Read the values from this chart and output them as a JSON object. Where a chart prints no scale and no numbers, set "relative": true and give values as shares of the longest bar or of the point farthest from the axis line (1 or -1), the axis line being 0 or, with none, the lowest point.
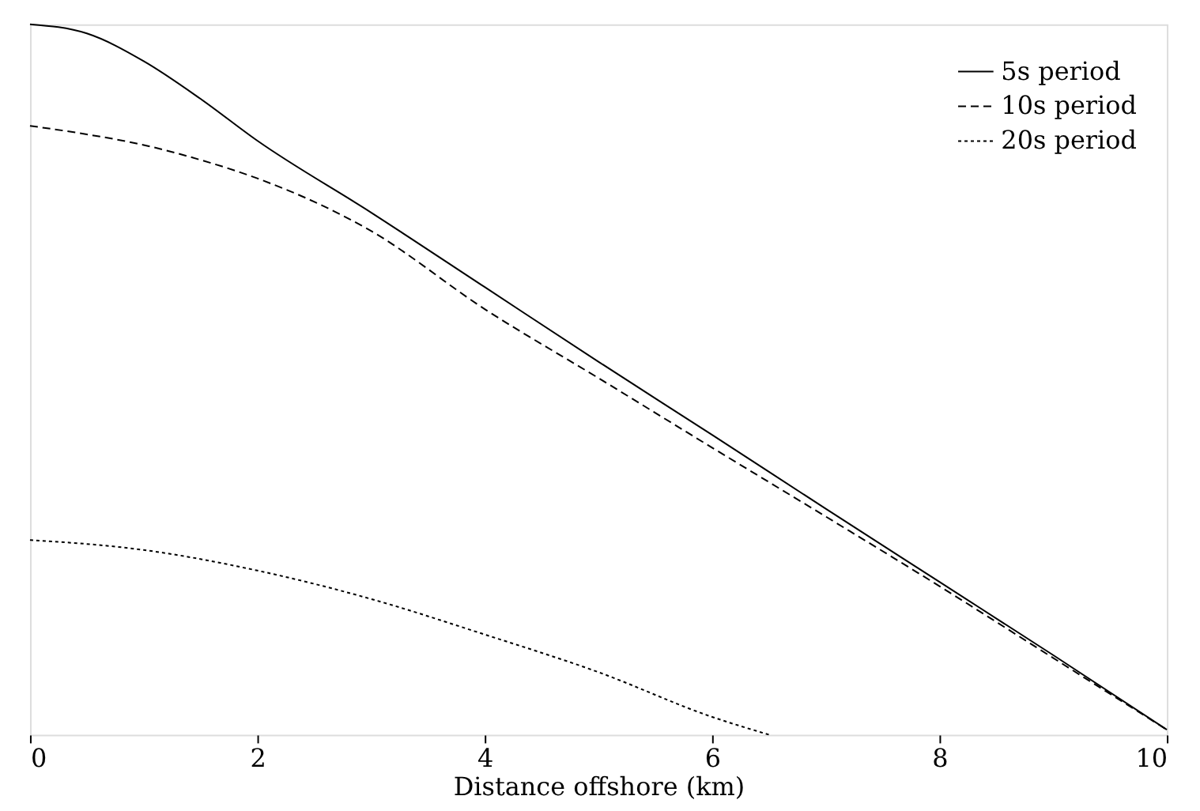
{
  "chart_data": {
    "type": "line",
    "relative": true,
    "xlabel": "Distance offshore (km)",
    "xlim": [
      0,
      10
    ],
    "xticks": [
      0,
      2,
      4,
      6,
      8,
      10
    ],
    "grid": false,
    "legend": "top right",
    "marker": "none",
    "series": [
      {
        "name": "5s period",
        "color": "#000000",
        "line_style": "solid",
        "x": [
          0,
          0.5,
          1,
          1.5,
          2,
          3,
          4,
          5,
          6,
          7,
          8,
          9,
          10
        ],
        "values": [
          1.0,
          0.987,
          0.948,
          0.895,
          0.836,
          0.735,
          0.63,
          0.525,
          0.422,
          0.318,
          0.215,
          0.112,
          0.007
        ]
      },
      {
        "name": "10s period",
        "color": "#000000",
        "line_style": "dashed",
        "x": [
          0,
          0.5,
          1,
          1.5,
          2,
          3,
          4,
          5,
          6,
          7,
          8,
          9,
          10
        ],
        "values": [
          0.857,
          0.845,
          0.83,
          0.809,
          0.783,
          0.709,
          0.599,
          0.502,
          0.404,
          0.307,
          0.209,
          0.108,
          0.007
        ]
      },
      {
        "name": "20s period",
        "color": "#000000",
        "line_style": "dotted",
        "x": [
          0,
          1,
          2,
          3,
          4,
          5,
          6,
          6.5
        ],
        "values": [
          0.274,
          0.26,
          0.231,
          0.191,
          0.141,
          0.088,
          0.025,
          0.0
        ]
      }
    ]
  }
}
